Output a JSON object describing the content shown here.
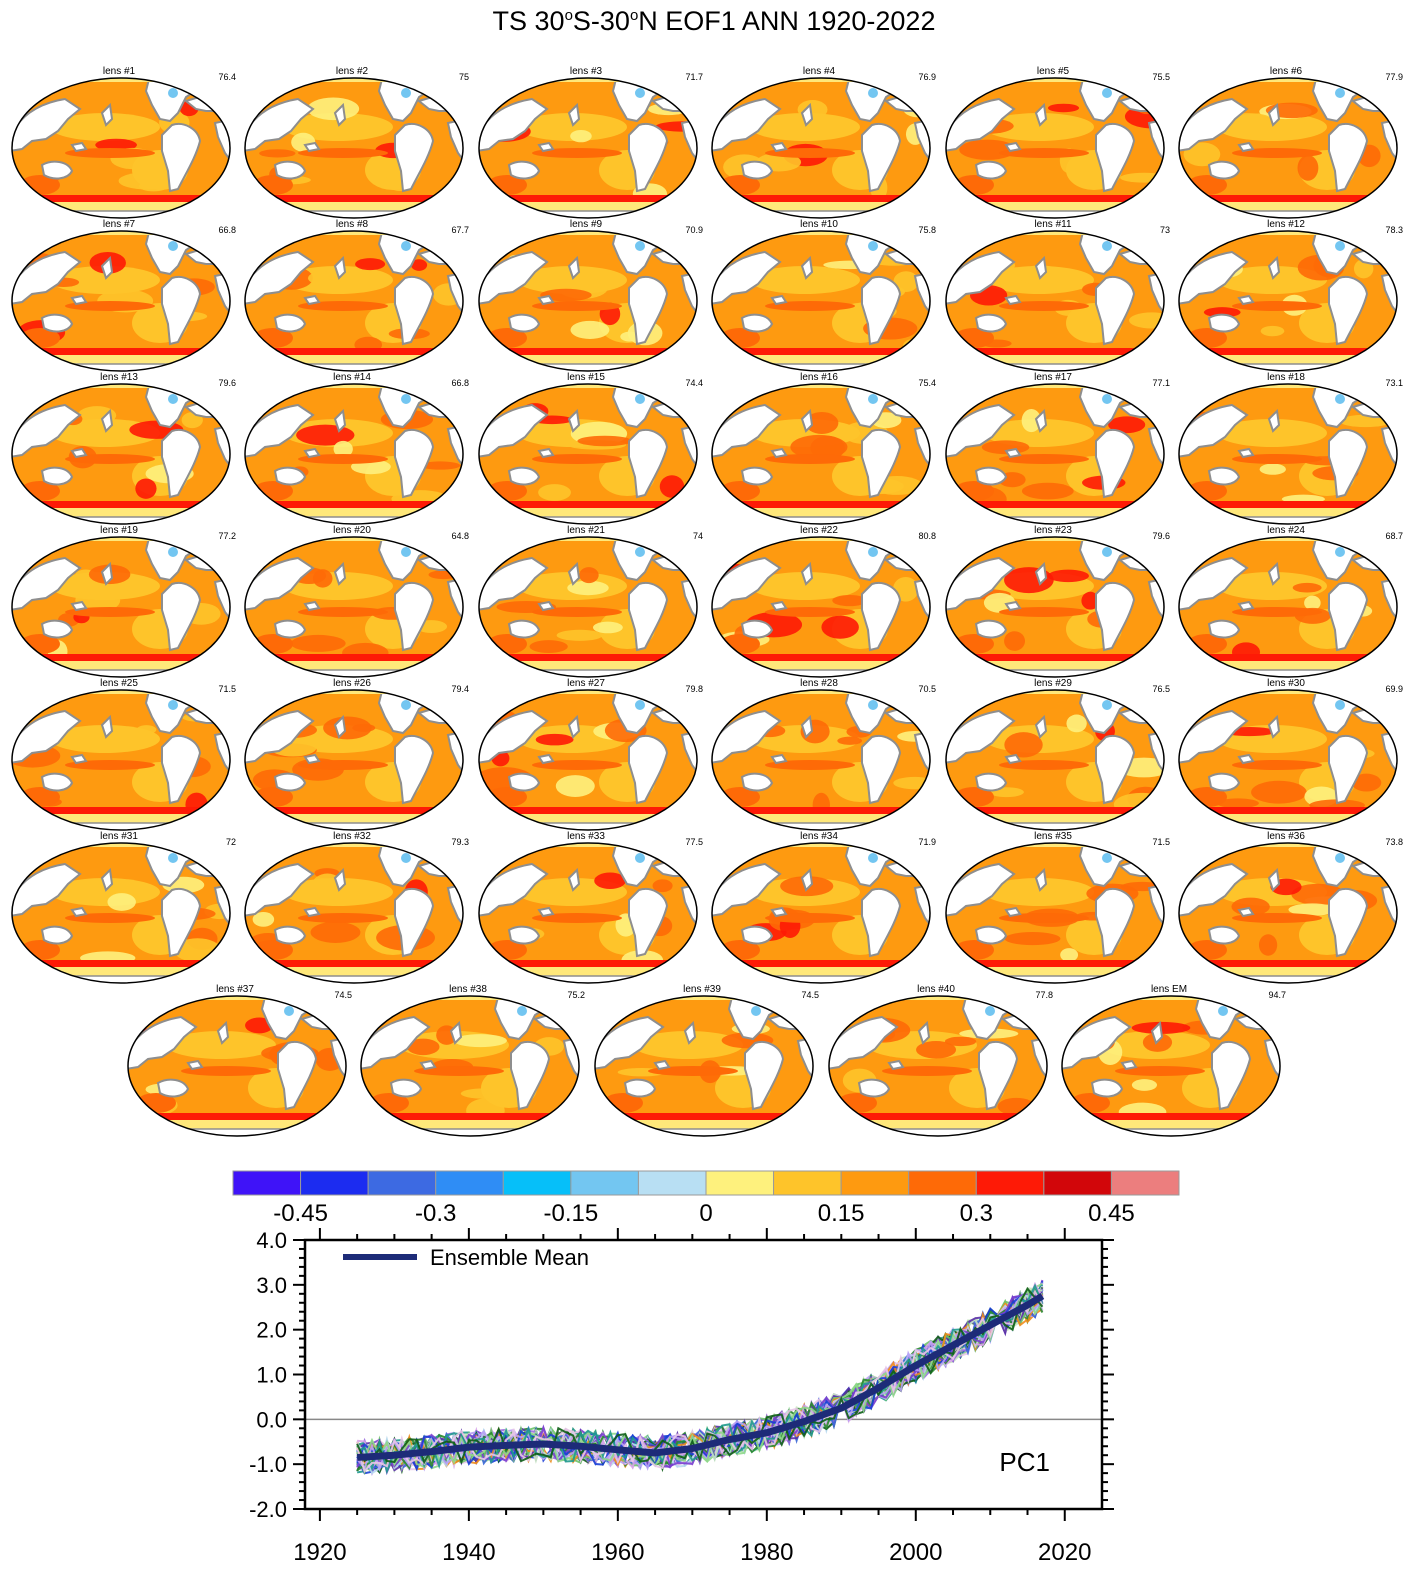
{
  "title": {
    "prefix": "TS 30",
    "sup1": "o",
    "mid": "S-30",
    "sup2": "o",
    "suffix": "N EOF1 ANN 1920-2022"
  },
  "colors": {
    "levels": [
      "#3f13f8",
      "#1c2cf0",
      "#3d6ae2",
      "#2f8df5",
      "#06bff9",
      "#73c6f1",
      "#b8dff3",
      "#fef17d",
      "#fec42a",
      "#fe9a10",
      "#fe6a07",
      "#fe1a06",
      "#d2060a",
      "#ec7e7e"
    ],
    "land": "#ffffff",
    "coast": "#8e8e8e",
    "antarctica": "#ffe87a",
    "ensemble_mean": "#1d2b78",
    "member_lines": [
      "#2a8a2e",
      "#7a3fd0",
      "#1a3fd6",
      "#b9a0f5",
      "#8fd88a",
      "#1f9a8e",
      "#e8c6e8",
      "#0e5e16",
      "#9b6ee0",
      "#3c67d8",
      "#c7e6c0",
      "#5a2fa8",
      "#6fc46c",
      "#f08c1a",
      "#b8d8f0",
      "#d7a3e8"
    ]
  },
  "panels": [
    {
      "label": "lens #1",
      "value": "76.4"
    },
    {
      "label": "lens #2",
      "value": "75"
    },
    {
      "label": "lens #3",
      "value": "71.7"
    },
    {
      "label": "lens #4",
      "value": "76.9"
    },
    {
      "label": "lens #5",
      "value": "75.5"
    },
    {
      "label": "lens #6",
      "value": "77.9"
    },
    {
      "label": "lens #7",
      "value": "66.8"
    },
    {
      "label": "lens #8",
      "value": "67.7"
    },
    {
      "label": "lens #9",
      "value": "70.9"
    },
    {
      "label": "lens #10",
      "value": "75.8"
    },
    {
      "label": "lens #11",
      "value": "73"
    },
    {
      "label": "lens #12",
      "value": "78.3"
    },
    {
      "label": "lens #13",
      "value": "79.6"
    },
    {
      "label": "lens #14",
      "value": "66.8"
    },
    {
      "label": "lens #15",
      "value": "74.4"
    },
    {
      "label": "lens #16",
      "value": "75.4"
    },
    {
      "label": "lens #17",
      "value": "77.1"
    },
    {
      "label": "lens #18",
      "value": "73.1"
    },
    {
      "label": "lens #19",
      "value": "77.2"
    },
    {
      "label": "lens #20",
      "value": "64.8"
    },
    {
      "label": "lens #21",
      "value": "74"
    },
    {
      "label": "lens #22",
      "value": "80.8"
    },
    {
      "label": "lens #23",
      "value": "79.6"
    },
    {
      "label": "lens #24",
      "value": "68.7"
    },
    {
      "label": "lens #25",
      "value": "71.5"
    },
    {
      "label": "lens #26",
      "value": "79.4"
    },
    {
      "label": "lens #27",
      "value": "79.8"
    },
    {
      "label": "lens #28",
      "value": "70.5"
    },
    {
      "label": "lens #29",
      "value": "76.5"
    },
    {
      "label": "lens #30",
      "value": "69.9"
    },
    {
      "label": "lens #31",
      "value": "72"
    },
    {
      "label": "lens #32",
      "value": "79.3"
    },
    {
      "label": "lens #33",
      "value": "77.5"
    },
    {
      "label": "lens #34",
      "value": "71.9"
    },
    {
      "label": "lens #35",
      "value": "71.5"
    },
    {
      "label": "lens #36",
      "value": "73.8"
    },
    {
      "label": "lens #37",
      "value": "74.5"
    },
    {
      "label": "lens #38",
      "value": "75.2"
    },
    {
      "label": "lens #39",
      "value": "74.5"
    },
    {
      "label": "lens #40",
      "value": "77.8"
    },
    {
      "label": "lens EM",
      "value": "94.7"
    }
  ],
  "colorbar": {
    "tick_labels": [
      "-0.45",
      "-0.3",
      "-0.15",
      "0",
      "0.15",
      "0.3",
      "0.45"
    ],
    "tick_values": [
      -0.45,
      -0.3,
      -0.15,
      0,
      0.15,
      0.3,
      0.45
    ],
    "range": [
      -0.525,
      0.525
    ]
  },
  "chart_data": {
    "type": "line",
    "annotation": "PC1",
    "xlim": [
      1918,
      2025
    ],
    "ylim": [
      -2.0,
      4.0
    ],
    "x_ticks": [
      1920,
      1940,
      1960,
      1980,
      2000,
      2020
    ],
    "y_ticks": [
      -2.0,
      -1.0,
      0.0,
      1.0,
      2.0,
      3.0,
      4.0
    ],
    "y_tick_labels": [
      "-2.0",
      "-1.0",
      "0.0",
      "1.0",
      "2.0",
      "3.0",
      "4.0"
    ],
    "zero_line": true,
    "legend": {
      "position": "top-left",
      "label": "Ensemble Mean"
    },
    "series": [
      {
        "name": "Ensemble Mean",
        "x": [
          1925,
          1930,
          1935,
          1940,
          1945,
          1950,
          1955,
          1960,
          1965,
          1970,
          1975,
          1980,
          1985,
          1990,
          1995,
          2000,
          2005,
          2010,
          2015,
          2017
        ],
        "values": [
          -0.85,
          -0.8,
          -0.72,
          -0.62,
          -0.58,
          -0.55,
          -0.6,
          -0.68,
          -0.75,
          -0.65,
          -0.45,
          -0.3,
          -0.05,
          0.25,
          0.7,
          1.2,
          1.65,
          2.1,
          2.55,
          2.75
        ]
      }
    ]
  }
}
